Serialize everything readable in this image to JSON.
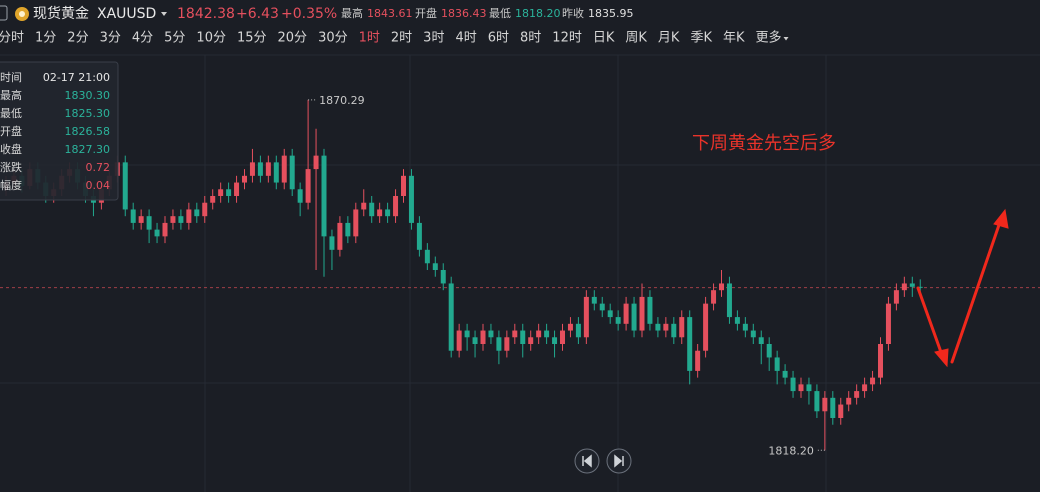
{
  "header": {
    "symbol_name": "现货黄金",
    "symbol": "XAUUSD",
    "price": 1842.38,
    "change": "+6.43",
    "change_pct": "+0.35%",
    "stats": [
      {
        "label": "最高",
        "value": "1843.61"
      },
      {
        "label": "开盘",
        "value": "1836.43"
      },
      {
        "label": "最低",
        "value": "1818.20"
      },
      {
        "label": "昨收",
        "value": "1835.95"
      }
    ]
  },
  "periods": [
    "分时",
    "1分",
    "2分",
    "3分",
    "4分",
    "5分",
    "10分",
    "15分",
    "20分",
    "30分",
    "1时",
    "2时",
    "3时",
    "4时",
    "6时",
    "8时",
    "12时",
    "日K",
    "周K",
    "月K",
    "季K",
    "年K",
    "更多"
  ],
  "active_period": 10,
  "tooltip": {
    "rows": [
      {
        "label": "时间",
        "value": "02-17 21:00",
        "color": "#e6e6e6"
      },
      {
        "label": "最高",
        "value": "1830.30",
        "color": "#2bb39b"
      },
      {
        "label": "最低",
        "value": "1825.30",
        "color": "#2bb39b"
      },
      {
        "label": "开盘",
        "value": "1826.58",
        "color": "#2bb39b"
      },
      {
        "label": "收盘",
        "value": "1827.30",
        "color": "#2bb39b"
      },
      {
        "label": "涨跌",
        "value": "0.72",
        "color": "#e5505e"
      },
      {
        "label": "幅度",
        "value": "0.04",
        "color": "#e5505e"
      }
    ]
  },
  "chart_data": {
    "type": "candlestick",
    "up_color": "#e5505e",
    "down_color": "#22a98f",
    "ylim": [
      1812,
      1878
    ],
    "annotation": "下周黄金先空后多",
    "extremes": {
      "high": {
        "value": 1870.29,
        "label": "1870.29"
      },
      "low": {
        "value": 1818.2,
        "label": "1818.20"
      }
    },
    "candles": [
      [
        1857,
        1859,
        1856,
        1858
      ],
      [
        1858,
        1860,
        1857,
        1859
      ],
      [
        1859,
        1860,
        1856.5,
        1857.5
      ],
      [
        1857.5,
        1861,
        1857,
        1860
      ],
      [
        1860,
        1861,
        1857,
        1858
      ],
      [
        1858,
        1859,
        1855,
        1856
      ],
      [
        1856,
        1858,
        1855,
        1857
      ],
      [
        1857,
        1860,
        1856,
        1859
      ],
      [
        1859,
        1861,
        1858,
        1860
      ],
      [
        1860,
        1861,
        1857,
        1858
      ],
      [
        1858,
        1859,
        1855,
        1856
      ],
      [
        1856,
        1857,
        1853,
        1855
      ],
      [
        1855,
        1858,
        1854,
        1857
      ],
      [
        1857,
        1860,
        1856,
        1859
      ],
      [
        1859,
        1862,
        1858,
        1861
      ],
      [
        1861,
        1862,
        1853,
        1854
      ],
      [
        1854,
        1855,
        1851,
        1852
      ],
      [
        1852,
        1854,
        1851,
        1853
      ],
      [
        1853,
        1854,
        1849,
        1851
      ],
      [
        1851,
        1852,
        1849,
        1850
      ],
      [
        1850,
        1853,
        1849,
        1852
      ],
      [
        1852,
        1854,
        1851,
        1853
      ],
      [
        1853,
        1854,
        1851,
        1852
      ],
      [
        1852,
        1855,
        1851,
        1854
      ],
      [
        1854,
        1855,
        1852,
        1853
      ],
      [
        1853,
        1856,
        1852,
        1855
      ],
      [
        1855,
        1857,
        1854,
        1856
      ],
      [
        1856,
        1858,
        1855,
        1857
      ],
      [
        1857,
        1858,
        1855,
        1856
      ],
      [
        1856,
        1859,
        1855,
        1858
      ],
      [
        1858,
        1860,
        1857,
        1859
      ],
      [
        1859,
        1863,
        1858,
        1861
      ],
      [
        1861,
        1862,
        1858,
        1859
      ],
      [
        1859,
        1862,
        1858,
        1861
      ],
      [
        1861,
        1862,
        1857,
        1858
      ],
      [
        1858,
        1863,
        1857,
        1862
      ],
      [
        1862,
        1863,
        1856,
        1857
      ],
      [
        1857,
        1858,
        1853,
        1855
      ],
      [
        1855,
        1870.29,
        1854,
        1860
      ],
      [
        1860,
        1866,
        1845,
        1862
      ],
      [
        1862,
        1863,
        1844,
        1850
      ],
      [
        1850,
        1851,
        1845,
        1848
      ],
      [
        1848,
        1853,
        1847,
        1852
      ],
      [
        1852,
        1853,
        1849,
        1850
      ],
      [
        1850,
        1855,
        1849,
        1854
      ],
      [
        1854,
        1857,
        1853,
        1855
      ],
      [
        1855,
        1856,
        1852,
        1853
      ],
      [
        1853,
        1855,
        1852,
        1854
      ],
      [
        1854,
        1855,
        1852,
        1853
      ],
      [
        1853,
        1857,
        1852,
        1856
      ],
      [
        1856,
        1860,
        1855,
        1859
      ],
      [
        1859,
        1860,
        1851,
        1852
      ],
      [
        1852,
        1853,
        1847,
        1848
      ],
      [
        1848,
        1849,
        1845,
        1846
      ],
      [
        1846,
        1847,
        1844,
        1845
      ],
      [
        1845,
        1846,
        1842,
        1843
      ],
      [
        1843,
        1844,
        1832,
        1833
      ],
      [
        1833,
        1837,
        1832,
        1836
      ],
      [
        1836,
        1837,
        1833,
        1835
      ],
      [
        1835,
        1836,
        1832,
        1834
      ],
      [
        1834,
        1837,
        1833,
        1836
      ],
      [
        1836,
        1837,
        1834,
        1835
      ],
      [
        1835,
        1836,
        1831,
        1833
      ],
      [
        1833,
        1836,
        1832,
        1835
      ],
      [
        1835,
        1837,
        1834,
        1836
      ],
      [
        1836,
        1837,
        1832,
        1834
      ],
      [
        1834,
        1836,
        1833,
        1835
      ],
      [
        1835,
        1837,
        1834,
        1836
      ],
      [
        1836,
        1837,
        1834,
        1835
      ],
      [
        1835,
        1836,
        1832,
        1834
      ],
      [
        1834,
        1837,
        1833,
        1836
      ],
      [
        1836,
        1838,
        1835,
        1837
      ],
      [
        1837,
        1838,
        1834,
        1835
      ],
      [
        1835,
        1842,
        1834,
        1841
      ],
      [
        1841,
        1842,
        1839,
        1840
      ],
      [
        1840,
        1841,
        1838,
        1839
      ],
      [
        1839,
        1840,
        1837,
        1838
      ],
      [
        1838,
        1839,
        1836,
        1837
      ],
      [
        1837,
        1841,
        1836,
        1840
      ],
      [
        1840,
        1841,
        1835,
        1836
      ],
      [
        1836,
        1843,
        1835,
        1841
      ],
      [
        1841,
        1842,
        1836,
        1837
      ],
      [
        1837,
        1838,
        1835,
        1836
      ],
      [
        1836,
        1838,
        1835,
        1837
      ],
      [
        1837,
        1838,
        1834,
        1835
      ],
      [
        1835,
        1839,
        1834,
        1838
      ],
      [
        1838,
        1839,
        1828,
        1830
      ],
      [
        1830,
        1834,
        1829,
        1833
      ],
      [
        1833,
        1841,
        1832,
        1840
      ],
      [
        1840,
        1843,
        1839,
        1842
      ],
      [
        1842,
        1845,
        1841,
        1843
      ],
      [
        1843,
        1844,
        1837,
        1838
      ],
      [
        1838,
        1839,
        1836,
        1837
      ],
      [
        1837,
        1838,
        1835,
        1836
      ],
      [
        1836,
        1837,
        1834,
        1835
      ],
      [
        1835,
        1836,
        1831,
        1834
      ],
      [
        1834,
        1835,
        1830,
        1832
      ],
      [
        1832,
        1833,
        1828,
        1830
      ],
      [
        1830,
        1831,
        1828,
        1829
      ],
      [
        1829,
        1830,
        1826,
        1827
      ],
      [
        1827,
        1829,
        1826,
        1828
      ],
      [
        1828,
        1829,
        1825,
        1827
      ],
      [
        1827,
        1828,
        1823,
        1824
      ],
      [
        1824,
        1827,
        1818.2,
        1826
      ],
      [
        1826,
        1827,
        1822,
        1823
      ],
      [
        1823,
        1826,
        1822,
        1825
      ],
      [
        1825,
        1827,
        1824,
        1826
      ],
      [
        1826,
        1828,
        1825,
        1827
      ],
      [
        1827,
        1829,
        1826,
        1828
      ],
      [
        1828,
        1830,
        1827,
        1829
      ],
      [
        1829,
        1835,
        1828,
        1834
      ],
      [
        1834,
        1841,
        1833,
        1840
      ],
      [
        1840,
        1843,
        1839,
        1842
      ],
      [
        1842,
        1844,
        1841,
        1843
      ],
      [
        1843,
        1844,
        1841,
        1842.5
      ],
      [
        1842.5,
        1843.61,
        1841,
        1842.38
      ]
    ]
  }
}
